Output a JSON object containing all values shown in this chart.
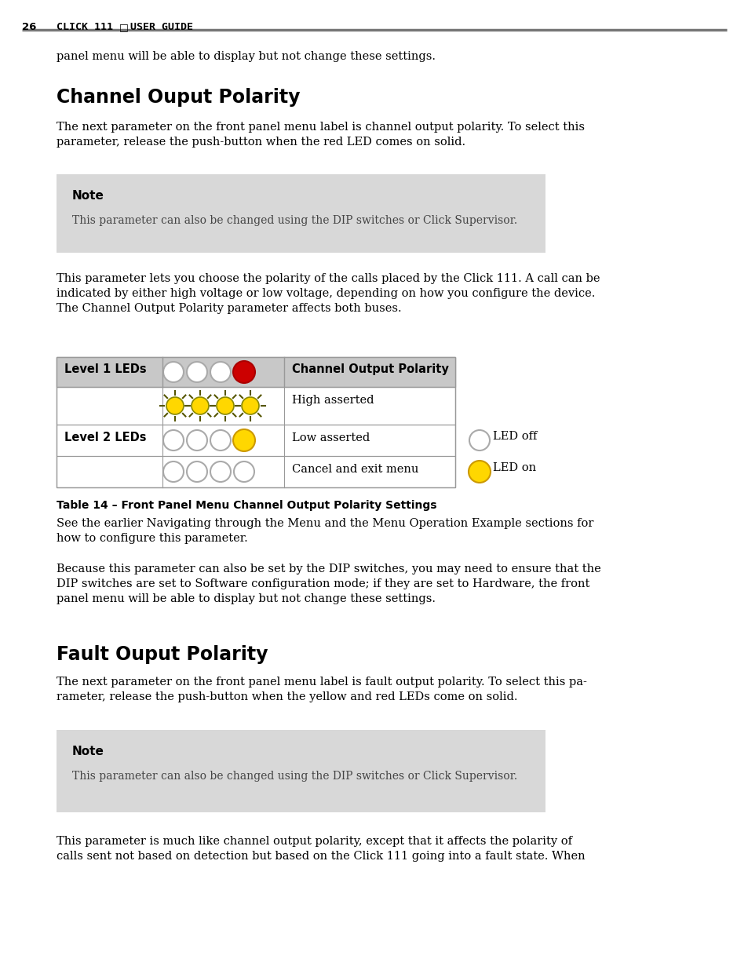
{
  "page_num": "26",
  "header_title": "CLICK 111",
  "header_subtitle": "USER GUIDE",
  "header_line_color": "#888888",
  "background_color": "#ffffff",
  "body_text_color": "#000000",
  "note_bg_color": "#d8d8d8",
  "table_header_bg": "#c8c8c8",
  "table_border_color": "#888888",
  "intro_text": "panel menu will be able to display but not change these settings.",
  "section1_title": "Channel Ouput Polarity",
  "section1_para1": "The next parameter on the front panel menu label is channel output polarity. To select this\nparameter, release the push-button when the red LED comes on solid.",
  "note1_label": "Note",
  "note1_text": "This parameter can also be changed using the DIP switches or Click Supervisor.",
  "section1_para2": "This parameter lets you choose the polarity of the calls placed by the Click 111. A call can be\nindicated by either high voltage or low voltage, depending on how you configure the device.\nThe Channel Output Polarity parameter affects both buses.",
  "table_caption": "Table 14 – Front Panel Menu Channel Output Polarity Settings",
  "section1_para3": "See the earlier Navigating through the Menu and the Menu Operation Example sections for\nhow to configure this parameter.",
  "section1_para4": "Because this parameter can also be set by the DIP switches, you may need to ensure that the\nDIP switches are set to Software configuration mode; if they are set to Hardware, the front\npanel menu will be able to display but not change these settings.",
  "section2_title": "Fault Ouput Polarity",
  "section2_para1": "The next parameter on the front panel menu label is fault output polarity. To select this pa-\nrameter, release the push-button when the yellow and red LEDs come on solid.",
  "note2_label": "Note",
  "note2_text": "This parameter can also be changed using the DIP switches or Click Supervisor.",
  "section2_para2": "This parameter is much like channel output polarity, except that it affects the polarity of\ncalls sent not based on detection but based on the Click 111 going into a fault state. When"
}
